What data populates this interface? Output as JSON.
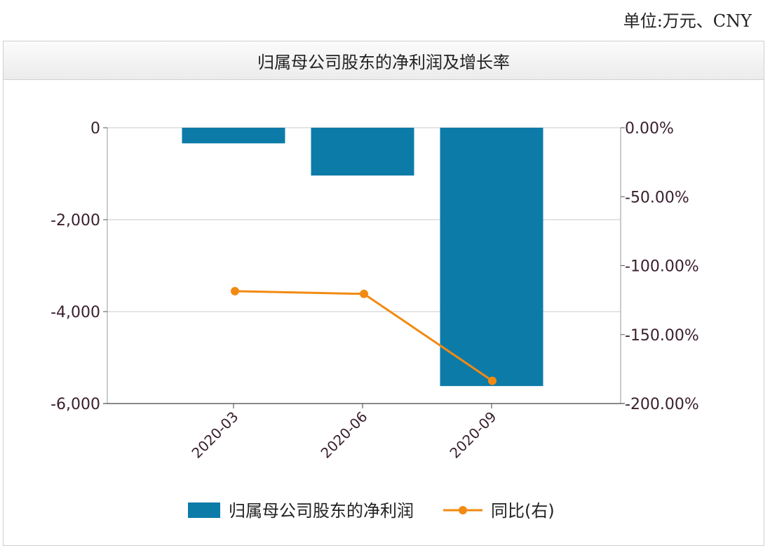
{
  "unit_label": "单位:万元、CNY",
  "chart_data": {
    "type": "bar",
    "title": "归属母公司股东的净利润及增长率",
    "categories": [
      "2020-03",
      "2020-06",
      "2020-09"
    ],
    "series": [
      {
        "name": "归属母公司股东的净利润",
        "kind": "bar",
        "axis": "left",
        "color": "#0d7ba8",
        "values": [
          -340,
          -1040,
          -5620
        ]
      },
      {
        "name": "同比(右)",
        "kind": "line",
        "axis": "right",
        "color": "#f28a12",
        "values": [
          -118.5,
          -120.5,
          -183.5
        ]
      }
    ],
    "y_left": {
      "ylim": [
        -6000,
        0
      ],
      "ticks": [
        0,
        -2000,
        -4000,
        -6000
      ],
      "tick_labels": [
        "0",
        "-2,000",
        "-4,000",
        "-6,000"
      ]
    },
    "y_right": {
      "ylim": [
        -200,
        0
      ],
      "ticks": [
        0,
        -50,
        -100,
        -150,
        -200
      ],
      "tick_labels": [
        "0.00%",
        "-50.00%",
        "-100.00%",
        "-150.00%",
        "-200.00%"
      ]
    },
    "grid": true,
    "legend": "bottom"
  }
}
